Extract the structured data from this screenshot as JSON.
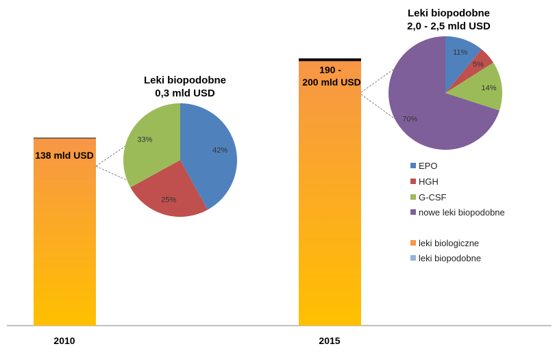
{
  "chart_data": {
    "type": "bar",
    "categories": [
      "2010",
      "2015"
    ],
    "series": [
      {
        "name": "leki biologiczne",
        "values": [
          138,
          195
        ]
      },
      {
        "name": "leki biopodobne",
        "values": [
          0.3,
          2.25
        ]
      }
    ],
    "bar_labels": [
      "138 mld USD",
      "190 -\n200 mld USD"
    ],
    "ylim": [
      0,
      230
    ],
    "colors": {
      "bar_top": "#F79646",
      "bar_bottom": "#FFC000",
      "biopodobne_strip": "#000000",
      "EPO": "#4F81BD",
      "HGH": "#C0504D",
      "G-CSF": "#9BBB59",
      "nowe": "#7F5F9A"
    },
    "pies": [
      {
        "title_line1": "Leki biopodobne",
        "title_line2": "0,3  mld USD",
        "slices": [
          {
            "name": "EPO",
            "value": 42,
            "label": "42%"
          },
          {
            "name": "HGH",
            "value": 25,
            "label": "25%"
          },
          {
            "name": "G-CSF",
            "value": 33,
            "label": "33%"
          }
        ]
      },
      {
        "title_line1": "Leki biopodobne",
        "title_line2": "2,0 - 2,5 mld USD",
        "slices": [
          {
            "name": "EPO",
            "value": 11,
            "label": "11%"
          },
          {
            "name": "HGH",
            "value": 5,
            "label": "5%"
          },
          {
            "name": "G-CSF",
            "value": 14,
            "label": "14%"
          },
          {
            "name": "nowe",
            "value": 70,
            "label": "70%"
          }
        ]
      }
    ],
    "legend": [
      {
        "key": "EPO",
        "label": "EPO"
      },
      {
        "key": "HGH",
        "label": "HGH"
      },
      {
        "key": "G-CSF",
        "label": "G-CSF"
      },
      {
        "key": "nowe",
        "label": "nowe leki biopodobne"
      },
      {
        "key": "bar_top",
        "label": "leki biologiczne"
      },
      {
        "key": "bio",
        "label": "leki biopodobne"
      }
    ],
    "legend_bio_color": "#95B3D7"
  }
}
